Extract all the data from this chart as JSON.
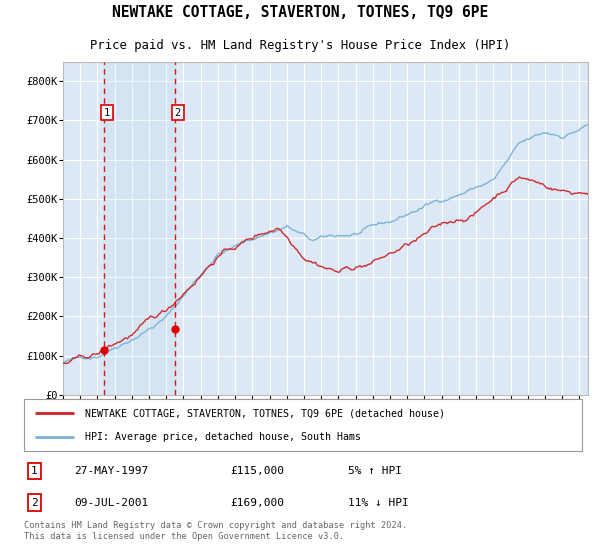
{
  "title": "NEWTAKE COTTAGE, STAVERTON, TOTNES, TQ9 6PE",
  "subtitle": "Price paid vs. HM Land Registry's House Price Index (HPI)",
  "ylim": [
    0,
    850000
  ],
  "yticks": [
    0,
    100000,
    200000,
    300000,
    400000,
    500000,
    600000,
    700000,
    800000
  ],
  "ytick_labels": [
    "£0",
    "£100K",
    "£200K",
    "£300K",
    "£400K",
    "£500K",
    "£600K",
    "£700K",
    "£800K"
  ],
  "hpi_color": "#7ab0d4",
  "price_color": "#cc2222",
  "dashed_color": "#dd0000",
  "bg_color": "#dce8f5",
  "grid_color": "#ffffff",
  "purchase1_date": 1997.41,
  "purchase1_price": 115000,
  "purchase1_label": "1",
  "purchase2_date": 2001.52,
  "purchase2_price": 169000,
  "purchase2_label": "2",
  "legend_line1": "NEWTAKE COTTAGE, STAVERTON, TOTNES, TQ9 6PE (detached house)",
  "legend_line2": "HPI: Average price, detached house, South Hams",
  "table_row1": [
    "1",
    "27-MAY-1997",
    "£115,000",
    "5% ↑ HPI"
  ],
  "table_row2": [
    "2",
    "09-JUL-2001",
    "£169,000",
    "11% ↓ HPI"
  ],
  "footnote": "Contains HM Land Registry data © Crown copyright and database right 2024.\nThis data is licensed under the Open Government Licence v3.0.",
  "xstart": 1995.0,
  "xend": 2025.5
}
